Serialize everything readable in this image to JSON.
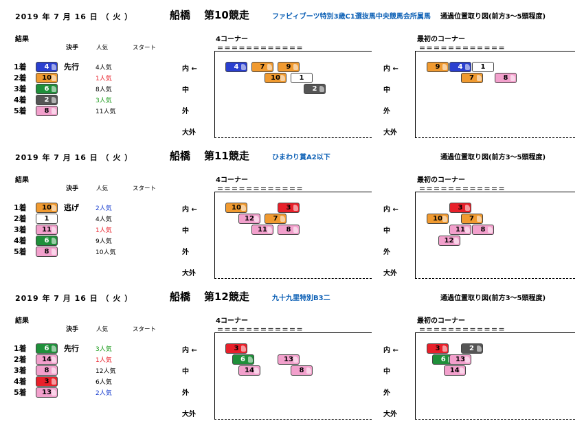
{
  "headers": {
    "results": "結果",
    "style": "決手",
    "popularity": "人気",
    "start": "スタート",
    "corner4": "4コーナー",
    "corner_first": "最初のコーナー",
    "lanes": [
      "内 ←",
      "中",
      "外",
      "大外"
    ],
    "lanes_right": [
      "内 ←",
      "中",
      "外",
      "大外"
    ],
    "rule": "＝＝＝＝＝＝＝＝＝＝＝＝"
  },
  "colors": {
    "1": "#ffffff",
    "2": "#555555",
    "3": "#e8202a",
    "4": "#2a3fcf",
    "5": "#f1e327",
    "6": "#1f8f3a",
    "7": "#f09a30",
    "8": "#f2a0cc"
  },
  "races": [
    {
      "date": "2019 年  7  月 16  日 （ 火 ）",
      "track": "船橋",
      "race_no": "第10競走",
      "race_name": "ファビィブーツ特別3歳C1選抜馬中央競馬会所属馬",
      "diagram_title": "通過位置取り図(前方3～5頭程度)",
      "results": [
        {
          "rank": "1着",
          "horse": "4",
          "style": "先行",
          "pop": "4人気",
          "pop_color": "#000000"
        },
        {
          "rank": "2着",
          "horse": "10",
          "style": "",
          "pop": "1人気",
          "pop_color": "#e8202a"
        },
        {
          "rank": "3着",
          "horse": "6",
          "style": "",
          "pop": "8人気",
          "pop_color": "#000000"
        },
        {
          "rank": "4着",
          "horse": "2",
          "style": "",
          "pop": "3人気",
          "pop_color": "#1a9a1a"
        },
        {
          "rank": "5着",
          "horse": "8",
          "style": "",
          "pop": "11人気",
          "pop_color": "#000000"
        }
      ],
      "corner4": [
        {
          "horse": "4",
          "col": 0,
          "row": 0
        },
        {
          "horse": "7",
          "col": 1,
          "row": 0
        },
        {
          "horse": "9",
          "col": 2,
          "row": 0
        },
        {
          "horse": "10",
          "col": 1.5,
          "row": 1
        },
        {
          "horse": "1",
          "col": 2.5,
          "row": 1
        },
        {
          "horse": "2",
          "col": 3,
          "row": 2
        }
      ],
      "corner_first": [
        {
          "horse": "9",
          "col": 0,
          "row": 0
        },
        {
          "horse": "4",
          "col": 1,
          "row": 0
        },
        {
          "horse": "1",
          "col": 2,
          "row": 0
        },
        {
          "horse": "7",
          "col": 1.5,
          "row": 1
        },
        {
          "horse": "8",
          "col": 3,
          "row": 1
        }
      ]
    },
    {
      "date": "2019 年  7  月 16  日 （ 火 ）",
      "track": "船橋",
      "race_no": "第11競走",
      "race_name": "ひまわり賞A2以下",
      "diagram_title": "通過位置取り図(前方3～5頭程度)",
      "results": [
        {
          "rank": "1着",
          "horse": "10",
          "style": "逃げ",
          "pop": "2人気",
          "pop_color": "#1a3fcf"
        },
        {
          "rank": "2着",
          "horse": "1",
          "style": "",
          "pop": "4人気",
          "pop_color": "#000000"
        },
        {
          "rank": "3着",
          "horse": "11",
          "style": "",
          "pop": "1人気",
          "pop_color": "#e8202a"
        },
        {
          "rank": "4着",
          "horse": "6",
          "style": "",
          "pop": "9人気",
          "pop_color": "#000000"
        },
        {
          "rank": "5着",
          "horse": "8",
          "style": "",
          "pop": "10人気",
          "pop_color": "#000000"
        }
      ],
      "corner4": [
        {
          "horse": "10",
          "col": 0,
          "row": 0
        },
        {
          "horse": "3",
          "col": 2,
          "row": 0
        },
        {
          "horse": "12",
          "col": 0.5,
          "row": 1
        },
        {
          "horse": "7",
          "col": 1.5,
          "row": 1
        },
        {
          "horse": "11",
          "col": 1,
          "row": 2
        },
        {
          "horse": "8",
          "col": 2,
          "row": 2
        }
      ],
      "corner_first": [
        {
          "horse": "3",
          "col": 1,
          "row": 0
        },
        {
          "horse": "10",
          "col": 0,
          "row": 1
        },
        {
          "horse": "7",
          "col": 1.5,
          "row": 1
        },
        {
          "horse": "11",
          "col": 1,
          "row": 2
        },
        {
          "horse": "8",
          "col": 2,
          "row": 2
        },
        {
          "horse": "12",
          "col": 0.5,
          "row": 3
        }
      ]
    },
    {
      "date": "2019 年  7  月 16  日 （ 火 ）",
      "track": "船橋",
      "race_no": "第12競走",
      "race_name": "九十九里特別B3二",
      "diagram_title": "通過位置取り図(前方3～5頭程度)",
      "results": [
        {
          "rank": "1着",
          "horse": "6",
          "style": "先行",
          "pop": "3人気",
          "pop_color": "#1a9a1a"
        },
        {
          "rank": "2着",
          "horse": "14",
          "style": "",
          "pop": "1人気",
          "pop_color": "#e8202a"
        },
        {
          "rank": "3着",
          "horse": "8",
          "style": "",
          "pop": "12人気",
          "pop_color": "#000000"
        },
        {
          "rank": "4着",
          "horse": "3",
          "style": "",
          "pop": "6人気",
          "pop_color": "#000000"
        },
        {
          "rank": "5着",
          "horse": "13",
          "style": "",
          "pop": "2人気",
          "pop_color": "#1a3fcf"
        }
      ],
      "corner4": [
        {
          "horse": "3",
          "col": 0,
          "row": 0
        },
        {
          "horse": "6",
          "col": 0.25,
          "row": 1
        },
        {
          "horse": "13",
          "col": 2,
          "row": 1
        },
        {
          "horse": "14",
          "col": 0.5,
          "row": 2
        },
        {
          "horse": "8",
          "col": 2.5,
          "row": 2
        }
      ],
      "corner_first": [
        {
          "horse": "3",
          "col": 0,
          "row": 0
        },
        {
          "horse": "2",
          "col": 1.5,
          "row": 0
        },
        {
          "horse": "6",
          "col": 0.25,
          "row": 1
        },
        {
          "horse": "13",
          "col": 1,
          "row": 1
        },
        {
          "horse": "14",
          "col": 0.75,
          "row": 2
        }
      ]
    }
  ]
}
